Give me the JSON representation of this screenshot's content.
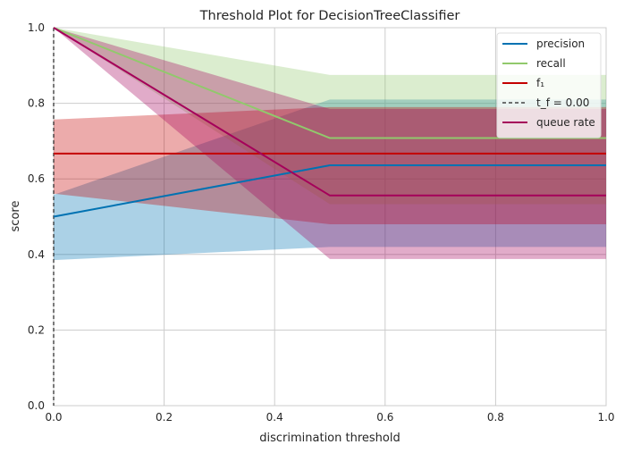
{
  "chart_data": {
    "type": "line",
    "title": "Threshold Plot for DecisionTreeClassifier",
    "xlabel": "discrimination threshold",
    "ylabel": "score",
    "xlim": [
      0,
      1
    ],
    "ylim": [
      0,
      1
    ],
    "xticks": [
      "0.0",
      "0.2",
      "0.4",
      "0.6",
      "0.8",
      "1.0"
    ],
    "yticks": [
      "0.0",
      "0.2",
      "0.4",
      "0.6",
      "0.8",
      "1.0"
    ],
    "grid": true,
    "legend_position": "top-right",
    "x": [
      0,
      0.5,
      1
    ],
    "series": [
      {
        "name": "precision",
        "color": "#0072B2",
        "values": [
          0.5,
          0.636,
          0.636
        ],
        "lower": [
          0.385,
          0.42,
          0.42
        ],
        "upper": [
          0.558,
          0.81,
          0.81
        ]
      },
      {
        "name": "recall",
        "color": "#91C96C",
        "values": [
          1.0,
          0.708,
          0.708
        ],
        "lower": [
          1.0,
          0.533,
          0.533
        ],
        "upper": [
          1.0,
          0.875,
          0.875
        ]
      },
      {
        "name": "f₁",
        "color": "#C40000",
        "values": [
          0.667,
          0.667,
          0.667
        ],
        "lower": [
          0.561,
          0.48,
          0.48
        ],
        "upper": [
          0.757,
          0.79,
          0.79
        ]
      },
      {
        "name": "queue rate",
        "color": "#A5005A",
        "values": [
          1.0,
          0.556,
          0.556
        ],
        "lower": [
          1.0,
          0.388,
          0.388
        ],
        "upper": [
          1.0,
          0.785,
          0.785
        ]
      }
    ],
    "threshold": {
      "label": "t_f = 0.00",
      "value": 0.0,
      "color": "#222222"
    }
  }
}
